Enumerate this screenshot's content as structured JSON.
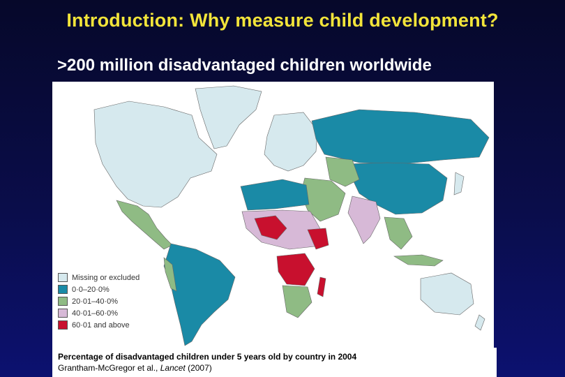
{
  "slide": {
    "title": "Introduction: Why measure child development?",
    "subtitle": ">200 million disadvantaged children worldwide"
  },
  "legend": {
    "items": [
      {
        "label": "Missing or excluded",
        "color": "#d6e9ee"
      },
      {
        "label": "0·0–20·0%",
        "color": "#1a8aa6"
      },
      {
        "label": "20·01–40·0%",
        "color": "#8fbb84"
      },
      {
        "label": "40·01–60·0%",
        "color": "#d7b9d7"
      },
      {
        "label": "60·01 and above",
        "color": "#c8102e"
      }
    ]
  },
  "caption": {
    "line1": "Percentage of disadvantaged children under 5 years old by country in 2004",
    "line2_prefix": "Grantham-McGregor et al., ",
    "line2_journal": "Lancet",
    "line2_suffix": " (2007)"
  }
}
